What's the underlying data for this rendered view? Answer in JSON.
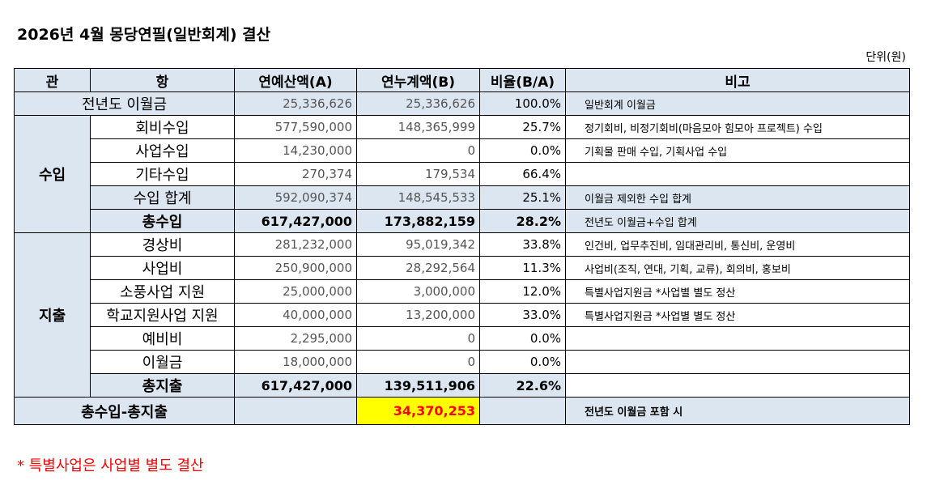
{
  "title": "2026년 4월 몽당연필(일반회계) 결산",
  "unit": "단위(원)",
  "headers": {
    "gwan": "관",
    "hang": "항",
    "budget": "연예산액(A)",
    "actual": "연누계액(B)",
    "ratio": "비율(B/A)",
    "note": "비고"
  },
  "prev": {
    "label": "전년도 이월금",
    "budget": "25,336,626",
    "actual": "25,336,626",
    "ratio": "100.0%",
    "note": "일반회계 이월금"
  },
  "income": {
    "label": "수입",
    "rows": [
      {
        "label": "회비수입",
        "budget": "577,590,000",
        "actual": "148,365,999",
        "ratio": "25.7%",
        "note": "정기회비, 비정기회비(마음모아 힘모아 프로젝트) 수입"
      },
      {
        "label": "사업수입",
        "budget": "14,230,000",
        "actual": "0",
        "ratio": "0.0%",
        "note": "기획물 판매 수입, 기획사업 수입"
      },
      {
        "label": "기타수입",
        "budget": "270,374",
        "actual": "179,534",
        "ratio": "66.4%",
        "note": ""
      }
    ],
    "subtotal": {
      "label": "수입 합계",
      "budget": "592,090,374",
      "actual": "148,545,533",
      "ratio": "25.1%",
      "note": "이월금 제외한 수입 합계"
    },
    "total": {
      "label": "총수입",
      "budget": "617,427,000",
      "actual": "173,882,159",
      "ratio": "28.2%",
      "note": "전년도 이월금+수입 합계"
    }
  },
  "expense": {
    "label": "지출",
    "rows": [
      {
        "label": "경상비",
        "budget": "281,232,000",
        "actual": "95,019,342",
        "ratio": "33.8%",
        "note": "인건비, 업무추진비, 임대관리비, 통신비, 운영비"
      },
      {
        "label": "사업비",
        "budget": "250,900,000",
        "actual": "28,292,564",
        "ratio": "11.3%",
        "note": "사업비(조직, 연대, 기획, 교류), 회의비, 홍보비"
      },
      {
        "label": "소풍사업 지원",
        "budget": "25,000,000",
        "actual": "3,000,000",
        "ratio": "12.0%",
        "note": "특별사업지원금 *사업별 별도 정산"
      },
      {
        "label": "학교지원사업 지원",
        "budget": "40,000,000",
        "actual": "13,200,000",
        "ratio": "33.0%",
        "note": "특별사업지원금 *사업별 별도 정산"
      },
      {
        "label": "예비비",
        "budget": "2,295,000",
        "actual": "0",
        "ratio": "0.0%",
        "note": ""
      },
      {
        "label": "이월금",
        "budget": "18,000,000",
        "actual": "0",
        "ratio": "0.0%",
        "note": ""
      }
    ],
    "total": {
      "label": "총지출",
      "budget": "617,427,000",
      "actual": "139,511,906",
      "ratio": "22.6%",
      "note": ""
    }
  },
  "balance": {
    "label": "총수입-총지출",
    "actual": "34,370,253",
    "note": "전년도 이월금 포함 시"
  },
  "footnote": "* 특별사업은 사업별 별도 결산",
  "colors": {
    "header_bg": "#dce6f1",
    "highlight_bg": "#ffff00",
    "highlight_text": "#ff0000"
  }
}
